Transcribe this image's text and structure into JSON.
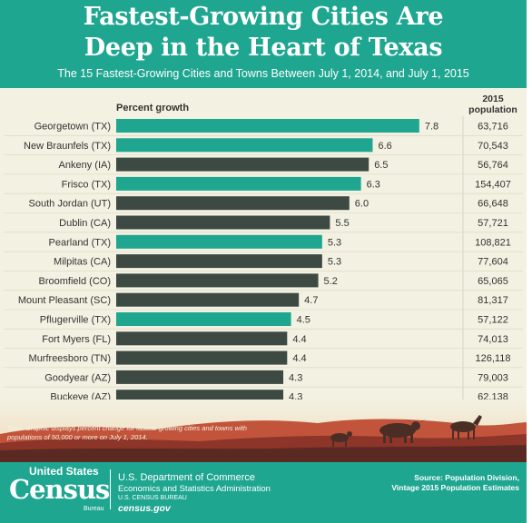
{
  "header": {
    "title_line1": "Fastest-Growing Cities Are",
    "title_line2": "Deep in the Heart of Texas",
    "subtitle": "The 15 Fastest-Growing Cities and Towns Between July 1, 2014, and July 1, 2015"
  },
  "colors": {
    "texas": "#1fa690",
    "other": "#3d4a44",
    "background": "#f3f1e1",
    "header": "#1fa690"
  },
  "chart_data": {
    "type": "bar",
    "orientation": "horizontal",
    "xlabel": "Percent growth",
    "population_header": "2015 population",
    "categories": [
      "Georgetown (TX)",
      "New Braunfels (TX)",
      "Ankeny (IA)",
      "Frisco (TX)",
      "South Jordan (UT)",
      "Dublin (CA)",
      "Pearland (TX)",
      "Milpitas (CA)",
      "Broomfield (CO)",
      "Mount Pleasant (SC)",
      "Pflugerville (TX)",
      "Fort Myers (FL)",
      "Murfreesboro (TN)",
      "Goodyear (AZ)",
      "Buckeye (AZ)"
    ],
    "values": [
      7.8,
      6.6,
      6.5,
      6.3,
      6.0,
      5.5,
      5.3,
      5.3,
      5.2,
      4.7,
      4.5,
      4.4,
      4.4,
      4.3,
      4.3
    ],
    "value_labels": [
      "7.8",
      "6.6",
      "6.5",
      "6.3",
      "6.0",
      "5.5",
      "5.3",
      "5.3",
      "5.2",
      "4.7",
      "4.5",
      "4.4",
      "4.4",
      "4.3",
      "4.3"
    ],
    "population_2015": [
      "63,716",
      "70,543",
      "56,764",
      "154,407",
      "66,648",
      "57,721",
      "108,821",
      "77,604",
      "65,065",
      "81,317",
      "57,122",
      "74,013",
      "126,118",
      "79,003",
      "62,138"
    ],
    "is_texas": [
      true,
      true,
      false,
      true,
      false,
      false,
      true,
      false,
      false,
      false,
      true,
      false,
      false,
      false,
      false
    ],
    "xlim": [
      0,
      8
    ],
    "grid": false
  },
  "note": "Note: Graphic displays percent change for fastest-growing cities and towns with populations of 50,000 or more on July 1, 2014.",
  "footer": {
    "logo_united_states": "United States",
    "logo_census": "Census",
    "logo_bureau": "Bureau",
    "dept_line1": "U.S. Department of Commerce",
    "dept_line2": "Economics and Statistics Administration",
    "dept_line3": "U.S. CENSUS BUREAU",
    "website": "census.gov",
    "source_line1": "Source: Population Division,",
    "source_line2": "Vintage 2015 Population Estimates"
  }
}
